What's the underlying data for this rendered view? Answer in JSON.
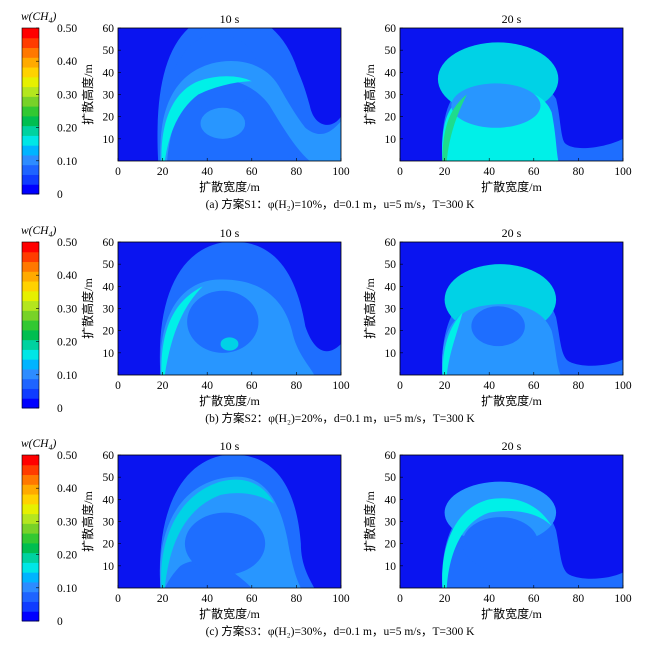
{
  "colorbar": {
    "title_main": "w(CH",
    "title_sub": "4",
    "title_close": ")",
    "ticks": [
      "0",
      "0.10",
      "0.20",
      "0.30",
      "0.40",
      "0.50"
    ],
    "tick_values": [
      0,
      0.1,
      0.2,
      0.3,
      0.4,
      0.5
    ],
    "colors": [
      "#0000FF",
      "#0F3CFF",
      "#1E64FF",
      "#2D8CFF",
      "#00B4FF",
      "#00E6E6",
      "#00D2A0",
      "#00BE50",
      "#32C832",
      "#78D228",
      "#B4E61E",
      "#E6F000",
      "#FFD200",
      "#FFAA00",
      "#FF7800",
      "#FF3C00",
      "#FF0000"
    ]
  },
  "colors": {
    "background": "#0A14F0",
    "level_1": "#1E6EFF",
    "level_2": "#2896FF",
    "level_3": "#00D2E6",
    "level_4": "#00F0E8",
    "level_5": "#1EDC8C"
  },
  "axis_labels": {
    "x": "扩散宽度/m",
    "y": "扩散高度/m"
  },
  "rows": [
    {
      "caption": "(a) 方案S1：φ(H₂)=10%，d=0.1 m，u=5 m/s，T=300 K",
      "panels": [
        {
          "title": "10 s"
        },
        {
          "title": "20 s"
        }
      ]
    },
    {
      "caption": "(b) 方案S2：φ(H₂)=20%，d=0.1 m，u=5 m/s，T=300 K",
      "panels": [
        {
          "title": "10 s"
        },
        {
          "title": "20 s"
        }
      ]
    },
    {
      "caption": "(c) 方案S3：φ(H₂)=30%，d=0.1 m，u=5 m/s，T=300 K",
      "panels": [
        {
          "title": "10 s"
        },
        {
          "title": "20 s"
        }
      ]
    }
  ],
  "chart_data": [
    {
      "type": "heatmap",
      "row": "a",
      "time": "10 s",
      "xlabel": "扩散宽度/m",
      "ylabel": "扩散高度/m",
      "xlim": [
        0,
        100
      ],
      "ylim": [
        0,
        60
      ],
      "xticks": [
        0,
        20,
        40,
        60,
        80,
        100
      ],
      "yticks": [
        10,
        20,
        30,
        40,
        50,
        60
      ]
    },
    {
      "type": "heatmap",
      "row": "a",
      "time": "20 s",
      "xlabel": "扩散宽度/m",
      "ylabel": "扩散高度/m",
      "xlim": [
        0,
        100
      ],
      "ylim": [
        0,
        60
      ],
      "xticks": [
        0,
        20,
        40,
        60,
        80,
        100
      ],
      "yticks": [
        10,
        20,
        30,
        40,
        50,
        60
      ]
    },
    {
      "type": "heatmap",
      "row": "b",
      "time": "10 s",
      "xlabel": "扩散宽度/m",
      "ylabel": "扩散高度/m",
      "xlim": [
        0,
        100
      ],
      "ylim": [
        0,
        60
      ],
      "xticks": [
        0,
        20,
        40,
        60,
        80,
        100
      ],
      "yticks": [
        10,
        20,
        30,
        40,
        50,
        60
      ]
    },
    {
      "type": "heatmap",
      "row": "b",
      "time": "20 s",
      "xlabel": "扩散宽度/m",
      "ylabel": "扩散高度/m",
      "xlim": [
        0,
        100
      ],
      "ylim": [
        0,
        60
      ],
      "xticks": [
        0,
        20,
        40,
        60,
        80,
        100
      ],
      "yticks": [
        10,
        20,
        30,
        40,
        50,
        60
      ]
    },
    {
      "type": "heatmap",
      "row": "c",
      "time": "10 s",
      "xlabel": "扩散宽度/m",
      "ylabel": "扩散高度/m",
      "xlim": [
        0,
        100
      ],
      "ylim": [
        0,
        60
      ],
      "xticks": [
        0,
        20,
        40,
        60,
        80,
        100
      ],
      "yticks": [
        10,
        20,
        30,
        40,
        50,
        60
      ]
    },
    {
      "type": "heatmap",
      "row": "c",
      "time": "20 s",
      "xlabel": "扩散宽度/m",
      "ylabel": "扩散高度/m",
      "xlim": [
        0,
        100
      ],
      "ylim": [
        0,
        60
      ],
      "xticks": [
        0,
        20,
        40,
        60,
        80,
        100
      ],
      "yticks": [
        10,
        20,
        30,
        40,
        50,
        60
      ]
    }
  ]
}
